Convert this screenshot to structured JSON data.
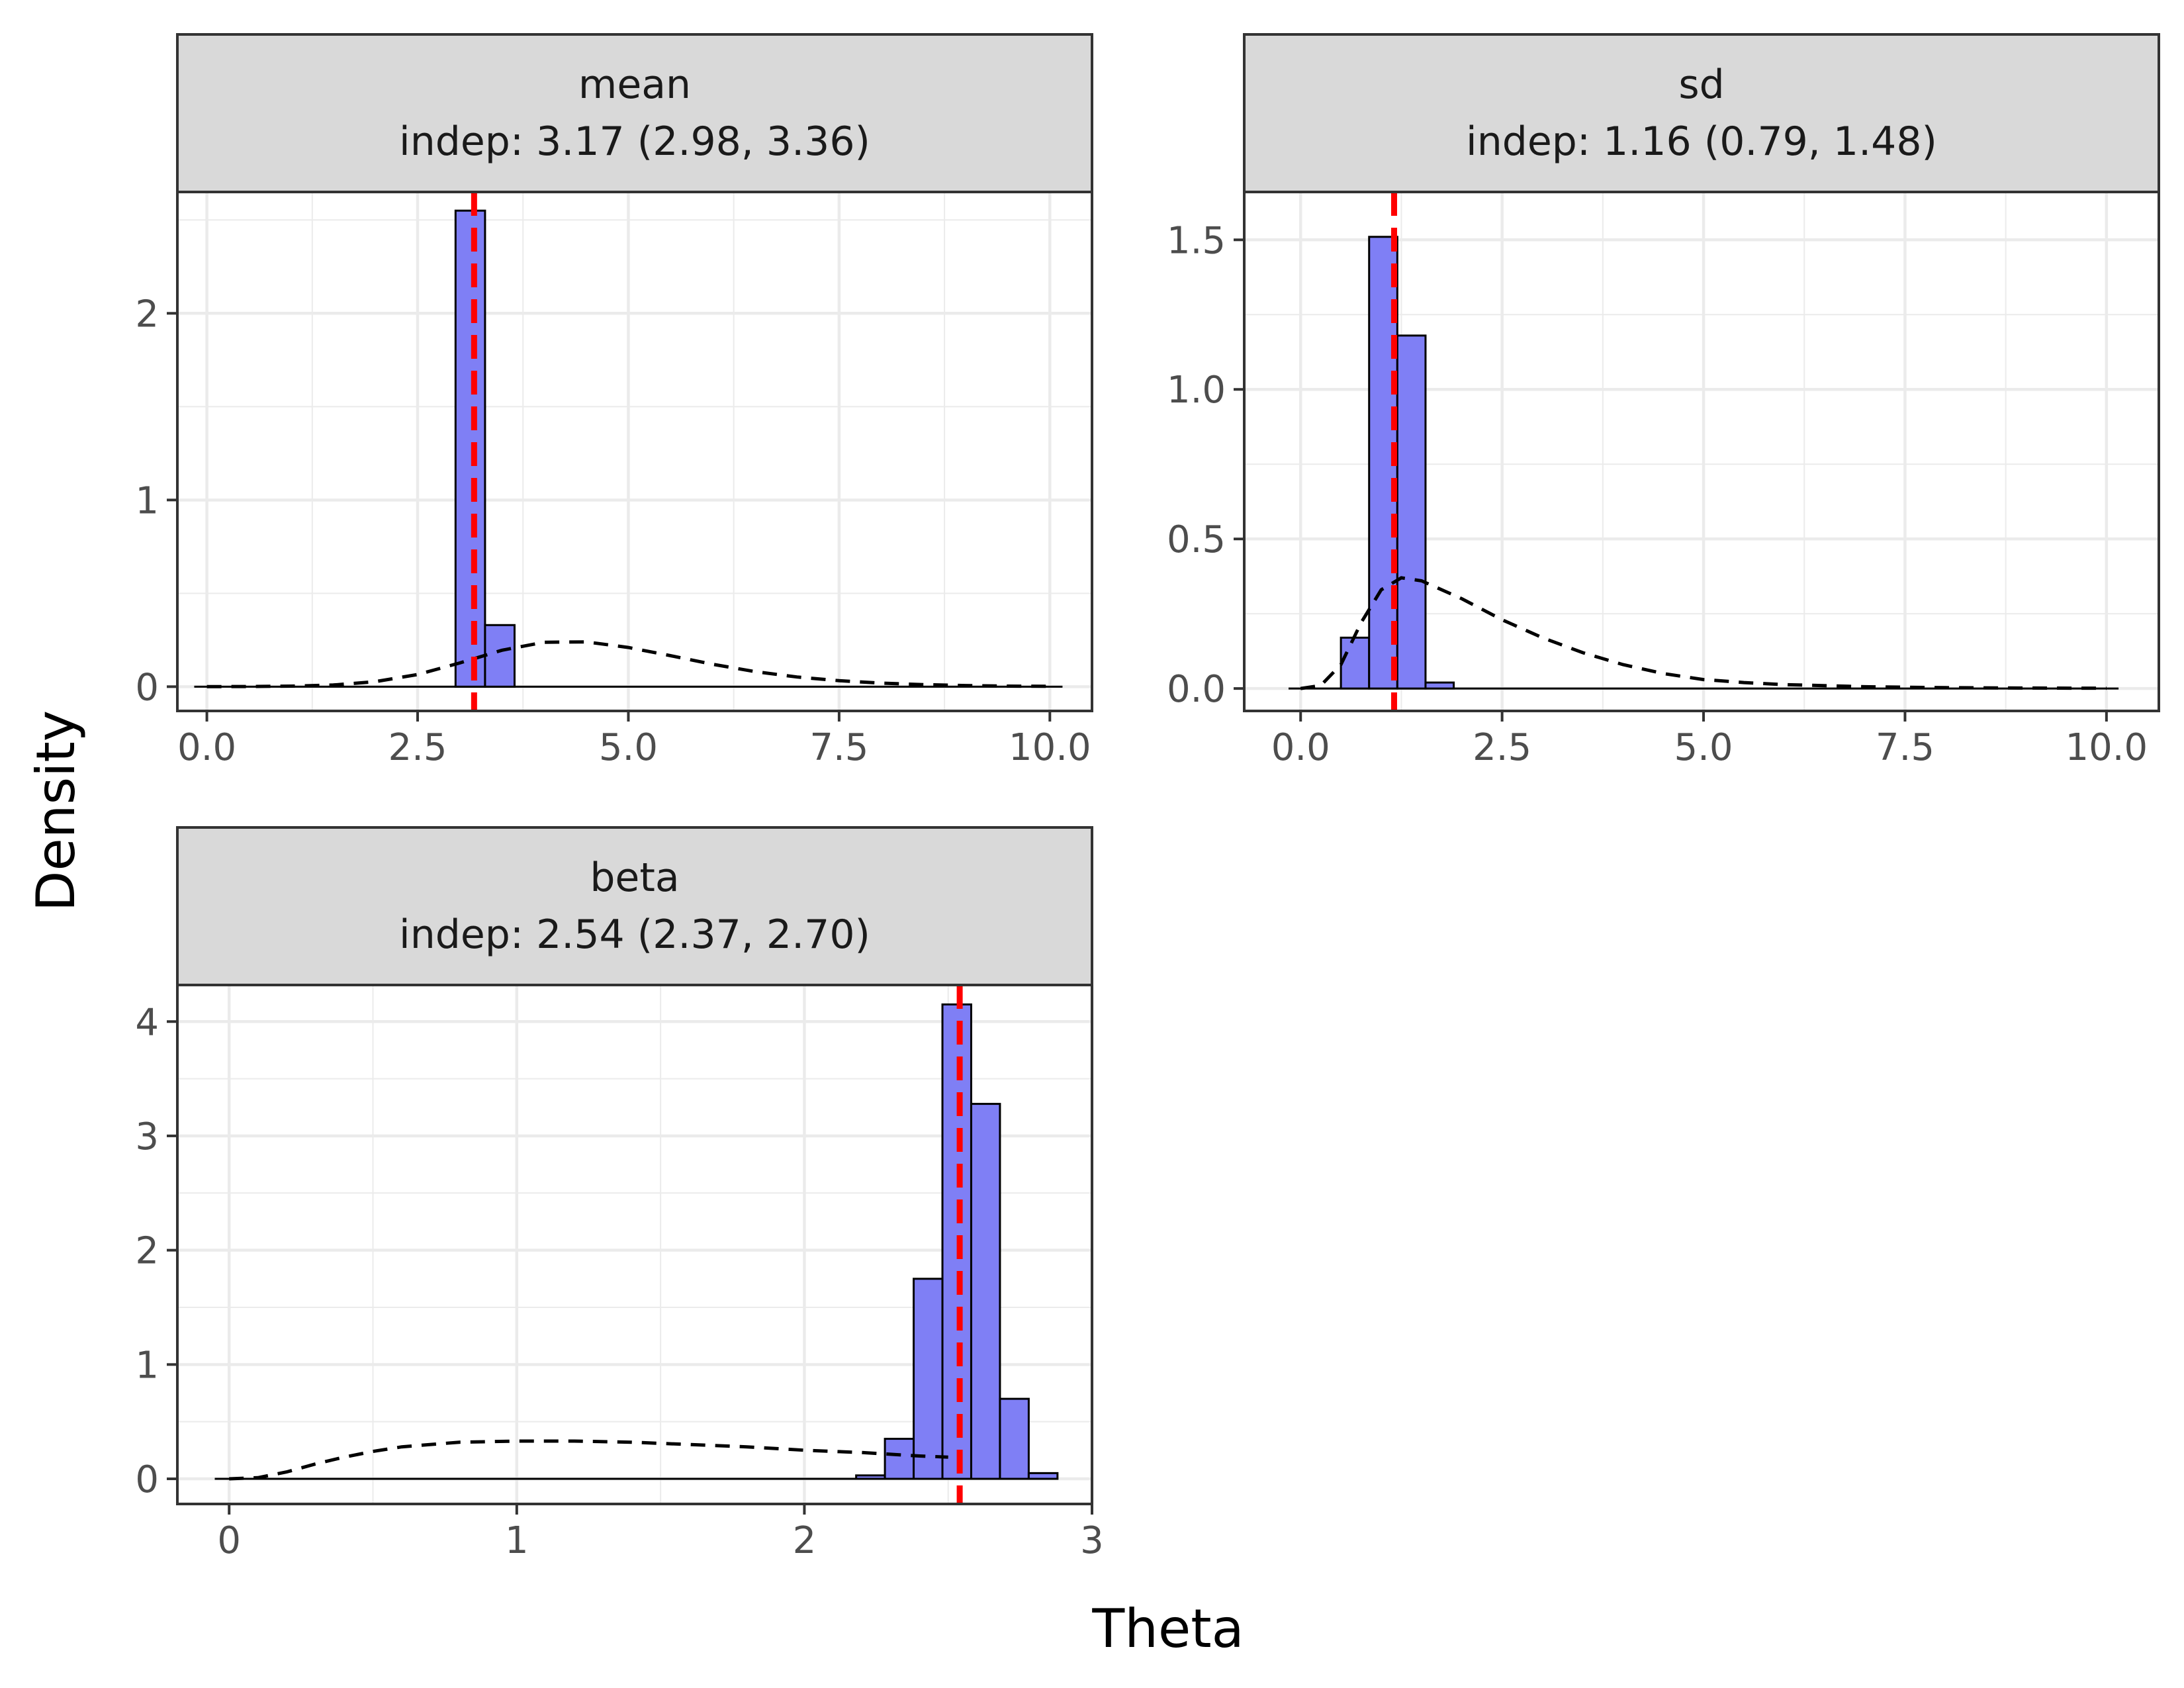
{
  "colors": {
    "bar_fill": "#7f7ff5",
    "bar_stroke": "#000000",
    "estimate_line": "#ff0000",
    "prior_curve": "#000000",
    "strip_fill": "#d9d9d9",
    "panel_border": "#333333",
    "grid": "#ebebeb"
  },
  "chart_data": {
    "type": "bar",
    "xlabel": "Theta",
    "ylabel": "Density",
    "grid": true,
    "panels": [
      {
        "name": "mean",
        "strip_line1": "mean",
        "strip_line2": "indep: 3.17 (2.98, 3.36)",
        "estimate": 3.17,
        "xlim": [
          -0.35,
          10.5
        ],
        "ylim": [
          -0.13,
          2.65
        ],
        "xticks": [
          0,
          2.5,
          5,
          7.5,
          10
        ],
        "xtick_labels": [
          "0.0",
          "2.5",
          "5.0",
          "7.5",
          "10.0"
        ],
        "yticks": [
          0,
          1,
          2
        ],
        "ytick_labels": [
          "0",
          "1",
          "2"
        ],
        "baseline_range": [
          -0.15,
          10.15
        ],
        "bars": [
          {
            "x0": 2.95,
            "x1": 3.3,
            "y": 2.55
          },
          {
            "x0": 3.3,
            "x1": 3.65,
            "y": 0.33
          }
        ],
        "prior_curve": {
          "x": [
            0,
            0.5,
            1,
            1.5,
            2,
            2.5,
            3,
            3.5,
            4,
            4.5,
            5,
            5.5,
            6,
            6.5,
            7,
            7.5,
            8,
            8.5,
            9,
            9.5,
            10
          ],
          "y": [
            0,
            0.001,
            0.003,
            0.009,
            0.027,
            0.065,
            0.127,
            0.195,
            0.238,
            0.24,
            0.21,
            0.166,
            0.12,
            0.081,
            0.052,
            0.032,
            0.019,
            0.011,
            0.006,
            0.003,
            0.002
          ]
        }
      },
      {
        "name": "sd",
        "strip_line1": "sd",
        "strip_line2": "indep: 1.16 (0.79, 1.48)",
        "estimate": 1.16,
        "xlim": [
          -0.7,
          10.65
        ],
        "ylim": [
          -0.075,
          1.66
        ],
        "xticks": [
          0,
          2.5,
          5,
          7.5,
          10
        ],
        "xtick_labels": [
          "0.0",
          "2.5",
          "5.0",
          "7.5",
          "10.0"
        ],
        "yticks": [
          0,
          0.5,
          1,
          1.5
        ],
        "ytick_labels": [
          "0.0",
          "0.5",
          "1.0",
          "1.5"
        ],
        "baseline_range": [
          -0.15,
          10.15
        ],
        "bars": [
          {
            "x0": 0.5,
            "x1": 0.85,
            "y": 0.17
          },
          {
            "x0": 0.85,
            "x1": 1.2,
            "y": 1.51
          },
          {
            "x0": 1.2,
            "x1": 1.55,
            "y": 1.18
          },
          {
            "x0": 1.55,
            "x1": 1.9,
            "y": 0.02
          }
        ],
        "prior_curve": {
          "x": [
            0,
            0.25,
            0.5,
            0.75,
            1,
            1.25,
            1.5,
            2,
            2.5,
            3,
            3.5,
            4,
            4.5,
            5,
            5.5,
            6,
            7,
            8,
            9,
            10
          ],
          "y": [
            0,
            0.01,
            0.08,
            0.22,
            0.33,
            0.37,
            0.36,
            0.3,
            0.23,
            0.17,
            0.12,
            0.08,
            0.05,
            0.03,
            0.02,
            0.013,
            0.006,
            0.003,
            0.0015,
            0.0008
          ]
        }
      },
      {
        "name": "beta",
        "strip_line1": "beta",
        "strip_line2": "indep: 2.54 (2.37, 2.70)",
        "estimate": 2.54,
        "xlim": [
          -0.18,
          3.0
        ],
        "ylim": [
          -0.22,
          4.32
        ],
        "xticks": [
          0,
          1,
          2,
          3
        ],
        "xtick_labels": [
          "0",
          "1",
          "2",
          "3"
        ],
        "yticks": [
          0,
          1,
          2,
          3,
          4
        ],
        "ytick_labels": [
          "0",
          "1",
          "2",
          "3",
          "4"
        ],
        "baseline_range": [
          -0.05,
          2.85
        ],
        "bars": [
          {
            "x0": 2.18,
            "x1": 2.28,
            "y": 0.03
          },
          {
            "x0": 2.28,
            "x1": 2.38,
            "y": 0.35
          },
          {
            "x0": 2.38,
            "x1": 2.48,
            "y": 1.75
          },
          {
            "x0": 2.48,
            "x1": 2.58,
            "y": 4.15
          },
          {
            "x0": 2.58,
            "x1": 2.68,
            "y": 3.28
          },
          {
            "x0": 2.68,
            "x1": 2.78,
            "y": 0.7
          },
          {
            "x0": 2.78,
            "x1": 2.88,
            "y": 0.05
          }
        ],
        "prior_curve": {
          "x": [
            0,
            0.1,
            0.2,
            0.3,
            0.4,
            0.5,
            0.6,
            0.8,
            1.0,
            1.2,
            1.4,
            1.6,
            1.8,
            2.0,
            2.2,
            2.4,
            2.5
          ],
          "y": [
            0,
            0.01,
            0.06,
            0.13,
            0.19,
            0.24,
            0.28,
            0.32,
            0.33,
            0.33,
            0.32,
            0.3,
            0.28,
            0.25,
            0.23,
            0.2,
            0.19
          ]
        }
      }
    ]
  }
}
